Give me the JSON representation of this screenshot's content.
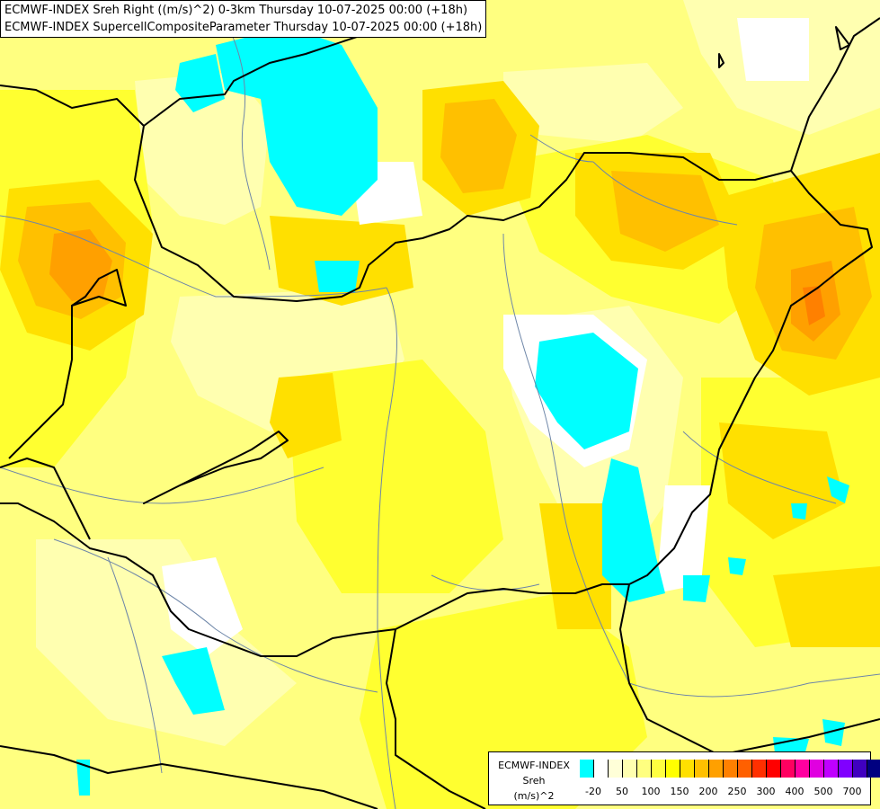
{
  "titles": {
    "line1": "ECMWF-INDEX Sreh Right ((m/s)^2) 0-3km Thursday 10-07-2025 00:00 (+18h)",
    "line2": "ECMWF-INDEX SupercellCompositeParameter Thursday 10-07-2025 00:00 (+18h)"
  },
  "legend": {
    "line1": "ECMWF-INDEX",
    "line2": "Sreh",
    "line3": "(m/s)^2",
    "colors": [
      "#00ffff",
      "#ffffff",
      "#ffffd8",
      "#ffffb0",
      "#ffff80",
      "#ffff40",
      "#ffff00",
      "#ffe000",
      "#ffc000",
      "#ffa000",
      "#ff8000",
      "#ff6000",
      "#ff3000",
      "#ff0000",
      "#ff0060",
      "#ff00a0",
      "#e000e0",
      "#c000ff",
      "#8000ff",
      "#4000c0",
      "#000080"
    ],
    "ticks": [
      "-20",
      "50",
      "100",
      "150",
      "200",
      "250",
      "300",
      "400",
      "500",
      "700"
    ]
  },
  "map": {
    "colors": {
      "background": "#ffffe0",
      "pale": "#ffffb0",
      "light_yellow": "#ffff80",
      "yellow": "#ffff30",
      "gold": "#ffe000",
      "orange": "#ffc000",
      "dark_orange": "#ffa000",
      "deep_orange": "#ff8000",
      "cyan": "#00ffff",
      "white": "#ffffff",
      "border": "#000000",
      "river": "#6e86a8"
    }
  }
}
